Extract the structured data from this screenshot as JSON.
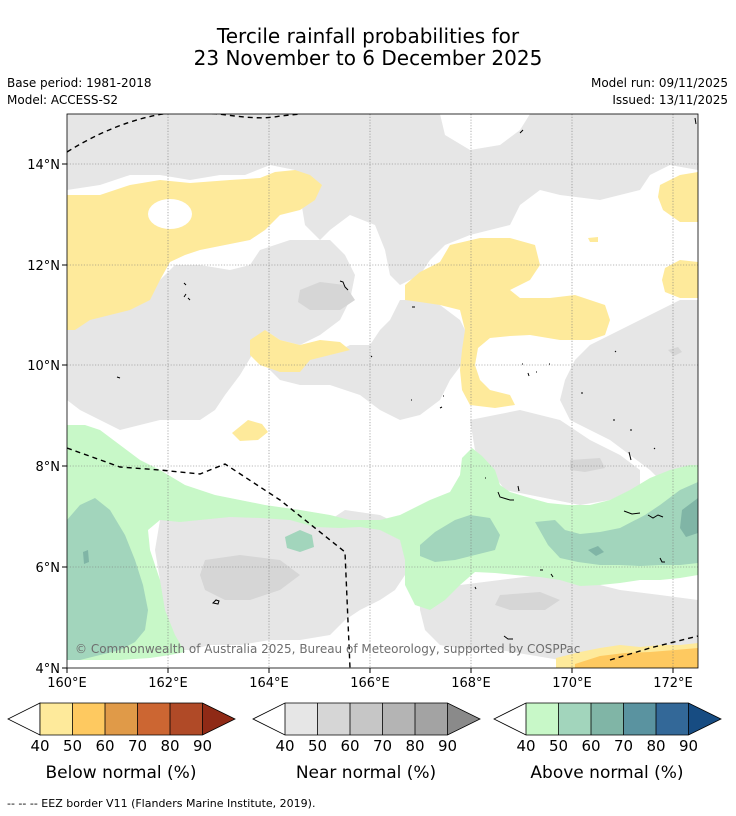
{
  "title_line1": "Tercile rainfall probabilities for",
  "title_line2": "23 November to 6 December 2025",
  "meta": {
    "base_period": "Base period: 1981-2018",
    "model": "Model: ACCESS-S2",
    "model_run": "Model run: 09/11/2025",
    "issued": "Issued: 13/11/2025"
  },
  "map": {
    "lat_labels": [
      "14°N",
      "12°N",
      "10°N",
      "8°N",
      "6°N",
      "4°N"
    ],
    "lon_labels": [
      "160°E",
      "162°E",
      "164°E",
      "166°E",
      "168°E",
      "170°E",
      "172°E"
    ],
    "copyright": "© Commonwealth of Australia 2025, Bureau of Meteorology, supported by COSPPac"
  },
  "legends": [
    {
      "label": "Below normal (%)",
      "ticks": [
        "40",
        "50",
        "60",
        "70",
        "80",
        "90"
      ],
      "colors": [
        "#ffffff",
        "#feea9b",
        "#fec960",
        "#e09a48",
        "#cc6632",
        "#b04a27",
        "#8f2a16"
      ]
    },
    {
      "label": "Near normal (%)",
      "ticks": [
        "40",
        "50",
        "60",
        "70",
        "80",
        "90"
      ],
      "colors": [
        "#ffffff",
        "#e6e6e6",
        "#d6d6d6",
        "#c6c6c6",
        "#b4b4b4",
        "#a3a3a3",
        "#8a8a8a"
      ]
    },
    {
      "label": "Above normal (%)",
      "ticks": [
        "40",
        "50",
        "60",
        "70",
        "80",
        "90"
      ],
      "colors": [
        "#ffffff",
        "#c8f8c8",
        "#a2d5bc",
        "#80b5a6",
        "#5a93a0",
        "#336898",
        "#174c82"
      ]
    }
  ],
  "footnote": "--  --  -- EEZ border V11 (Flanders Marine Institute, 2019)."
}
